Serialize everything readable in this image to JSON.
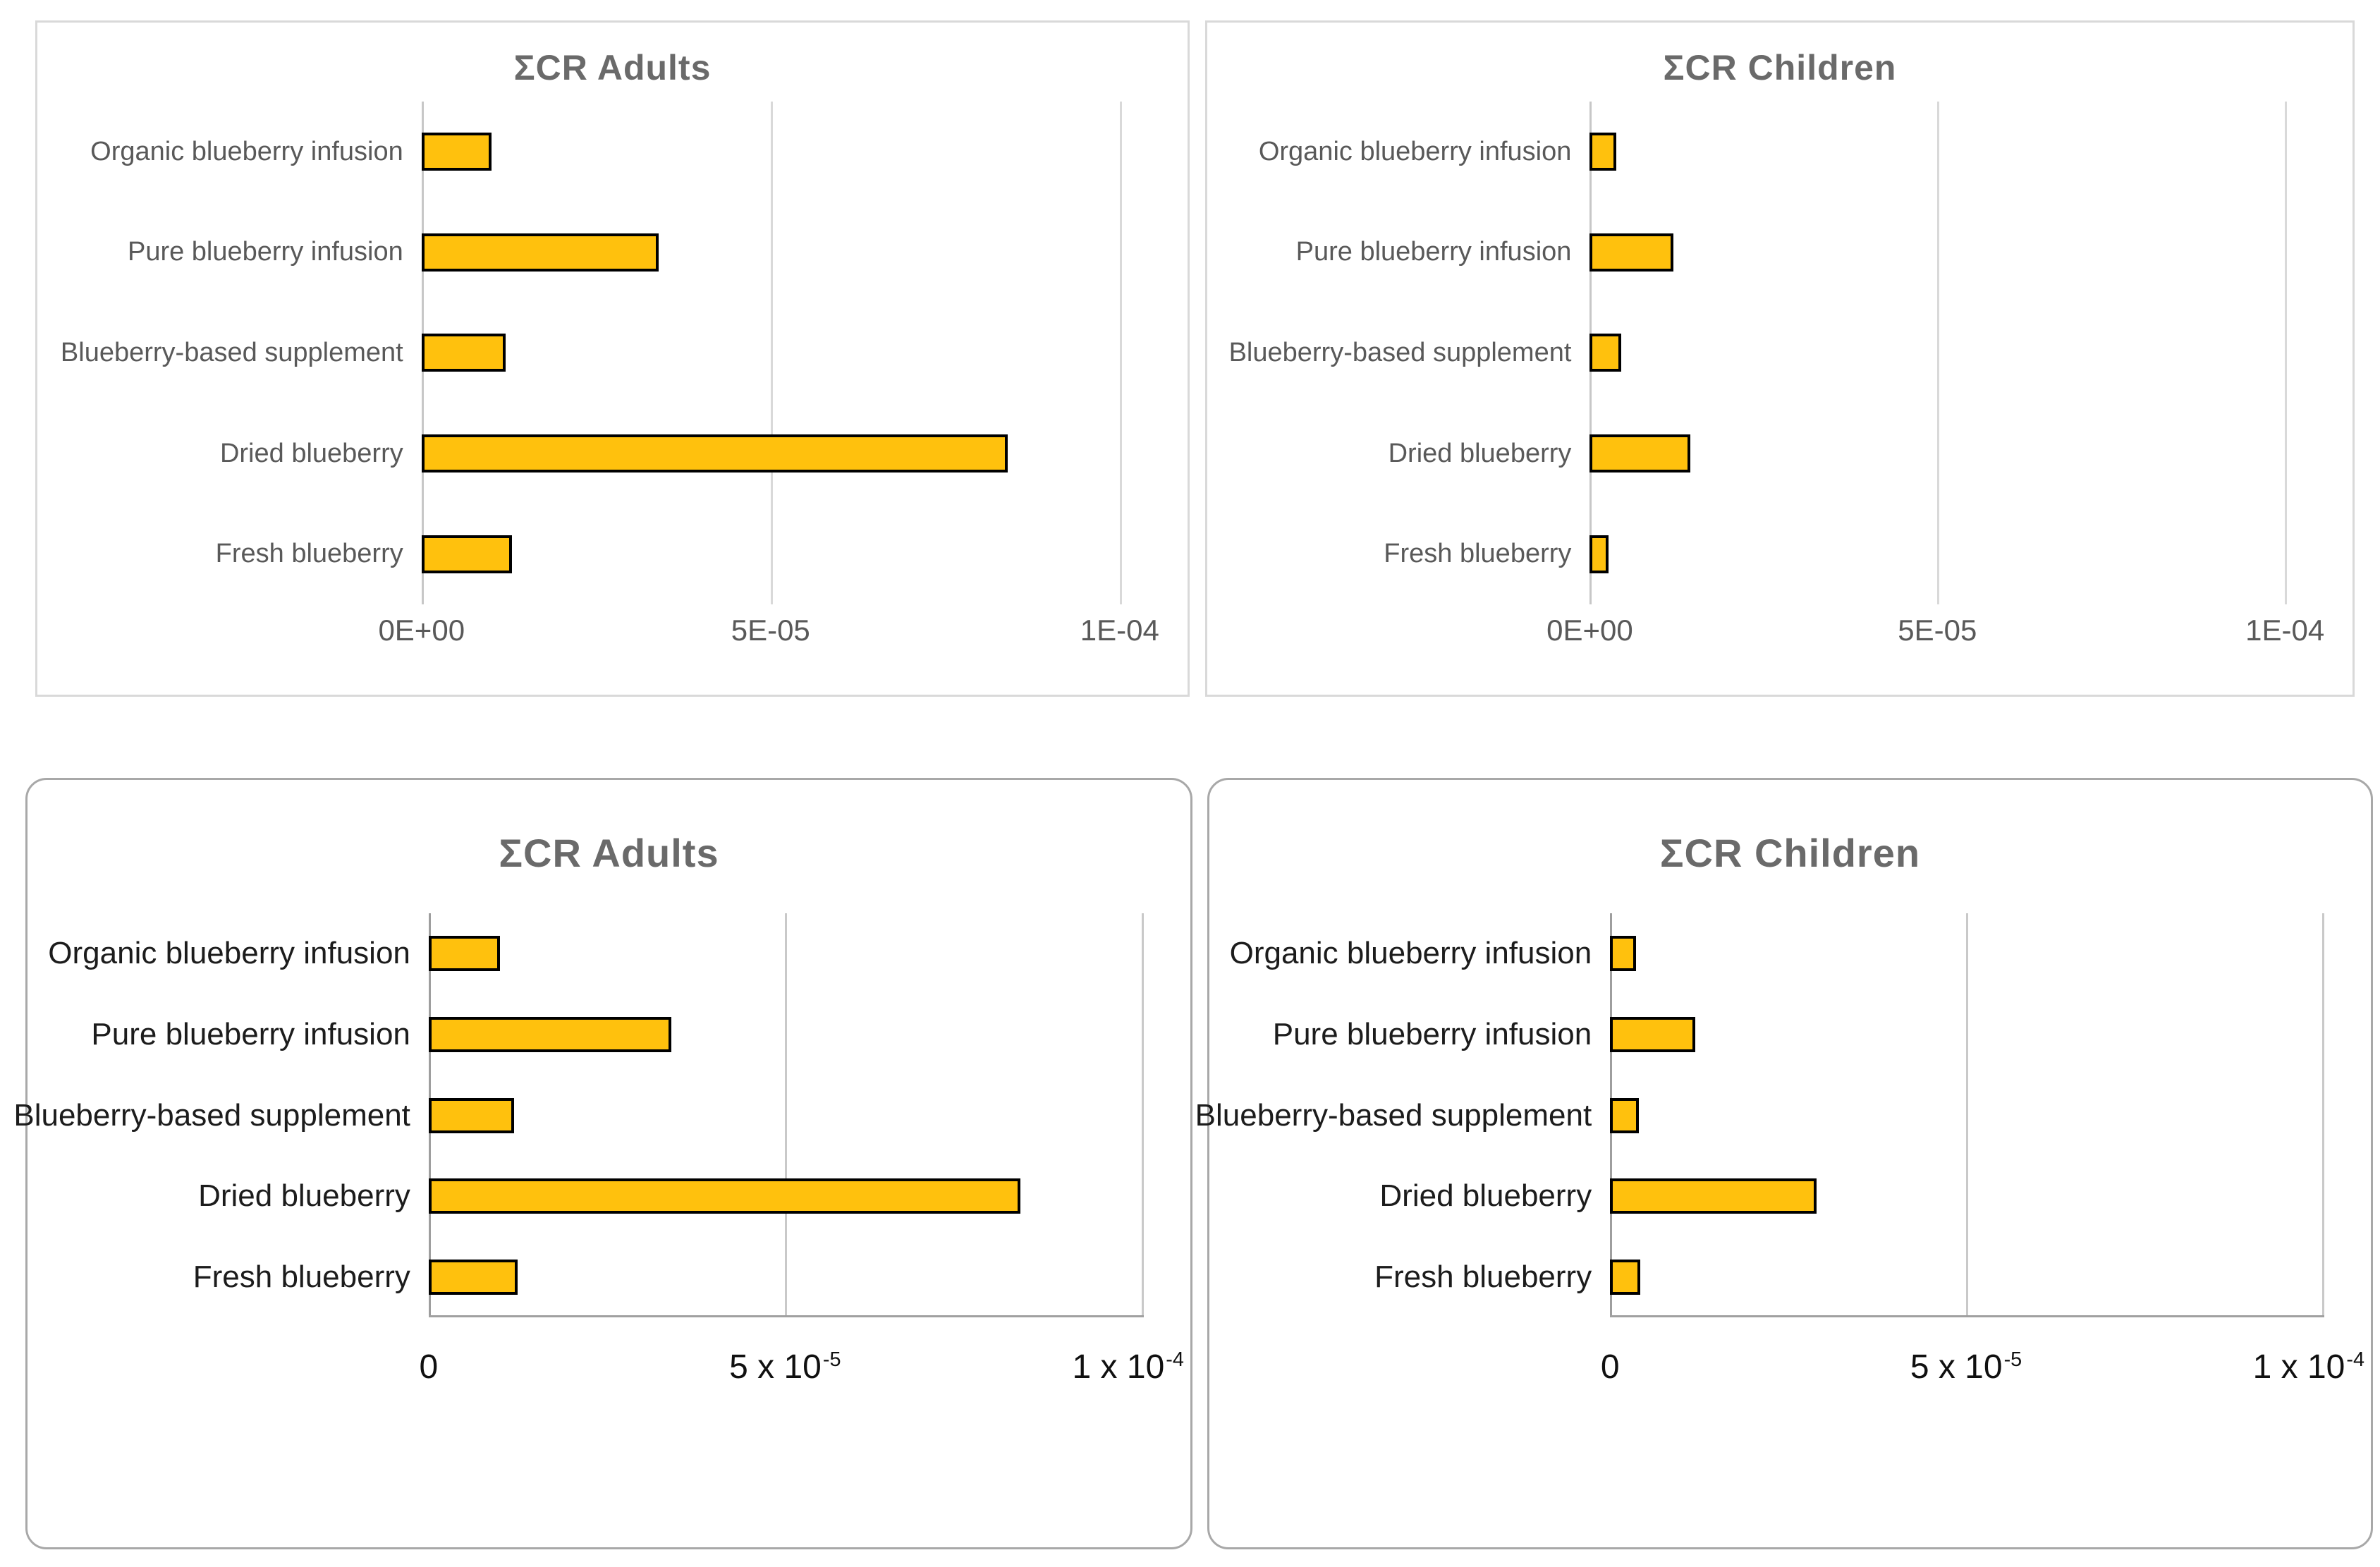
{
  "figure": {
    "description": "Four horizontal bar charts of carcinogenic risk (ΣCR) for adults and children across blueberry products",
    "bar_fill_color": "#FFC10D",
    "bar_border_color": "#000000",
    "title_color": "#6a6a6a",
    "top_panel_text_color": "#595959",
    "bottom_panel_text_color": "#1c1c1c",
    "gridline_color": "#d9d9d9"
  },
  "chart_data": [
    {
      "type": "bar",
      "orientation": "horizontal",
      "panel": "top-left",
      "title": "ΣCR Adults",
      "categories": [
        "Organic blueberry infusion",
        "Pure blueberry infusion",
        "Blueberry-based supplement",
        "Dried blueberry",
        "Fresh blueberry"
      ],
      "values": [
        1e-05,
        3.4e-05,
        1.2e-05,
        8.4e-05,
        1.3e-05
      ],
      "xlim": [
        0,
        0.0001
      ],
      "gridlines_at": [
        0,
        5e-05,
        0.0001
      ],
      "x_ticks": [
        {
          "label": "0E+00",
          "sup": ""
        },
        {
          "label": "5E-05",
          "sup": ""
        },
        {
          "label": "1E-04",
          "sup": ""
        }
      ],
      "legend": "none",
      "grid": "vertical-gridlines"
    },
    {
      "type": "bar",
      "orientation": "horizontal",
      "panel": "top-right",
      "title": "ΣCR Children",
      "categories": [
        "Organic blueberry infusion",
        "Pure blueberry infusion",
        "Blueberry-based supplement",
        "Dried blueberry",
        "Fresh blueberry"
      ],
      "values": [
        3.8e-06,
        1.2e-05,
        4.5e-06,
        1.45e-05,
        2.7e-06
      ],
      "xlim": [
        0,
        0.0001
      ],
      "gridlines_at": [
        0,
        5e-05,
        0.0001
      ],
      "x_ticks": [
        {
          "label": "0E+00",
          "sup": ""
        },
        {
          "label": "5E-05",
          "sup": ""
        },
        {
          "label": "1E-04",
          "sup": ""
        }
      ],
      "legend": "none",
      "grid": "vertical-gridlines"
    },
    {
      "type": "bar",
      "orientation": "horizontal",
      "panel": "bottom-left",
      "title": "ΣCR Adults",
      "categories": [
        "Organic blueberry infusion",
        "Pure blueberry infusion",
        "Blueberry-based supplement",
        "Dried blueberry",
        "Fresh blueberry"
      ],
      "values": [
        1e-05,
        3.4e-05,
        1.2e-05,
        8.3e-05,
        1.25e-05
      ],
      "xlim": [
        0,
        0.0001
      ],
      "gridlines_at": [
        0,
        5e-05,
        0.0001
      ],
      "x_ticks": [
        {
          "label": "0",
          "sup": ""
        },
        {
          "label": "5 x 10",
          "sup": "-5"
        },
        {
          "label": "1 x 10",
          "sup": "-4"
        }
      ],
      "legend": "none",
      "grid": "vertical-gridlines"
    },
    {
      "type": "bar",
      "orientation": "horizontal",
      "panel": "bottom-right",
      "title": "ΣCR Children",
      "categories": [
        "Organic blueberry infusion",
        "Pure blueberry infusion",
        "Blueberry-based supplement",
        "Dried blueberry",
        "Fresh blueberry"
      ],
      "values": [
        3.6e-06,
        1.2e-05,
        4e-06,
        2.9e-05,
        4.2e-06
      ],
      "xlim": [
        0,
        0.0001
      ],
      "gridlines_at": [
        0,
        5e-05,
        0.0001
      ],
      "x_ticks": [
        {
          "label": "0",
          "sup": ""
        },
        {
          "label": "5 x 10",
          "sup": "-5"
        },
        {
          "label": "1 x 10",
          "sup": "-4"
        }
      ],
      "legend": "none",
      "grid": "vertical-gridlines"
    }
  ]
}
